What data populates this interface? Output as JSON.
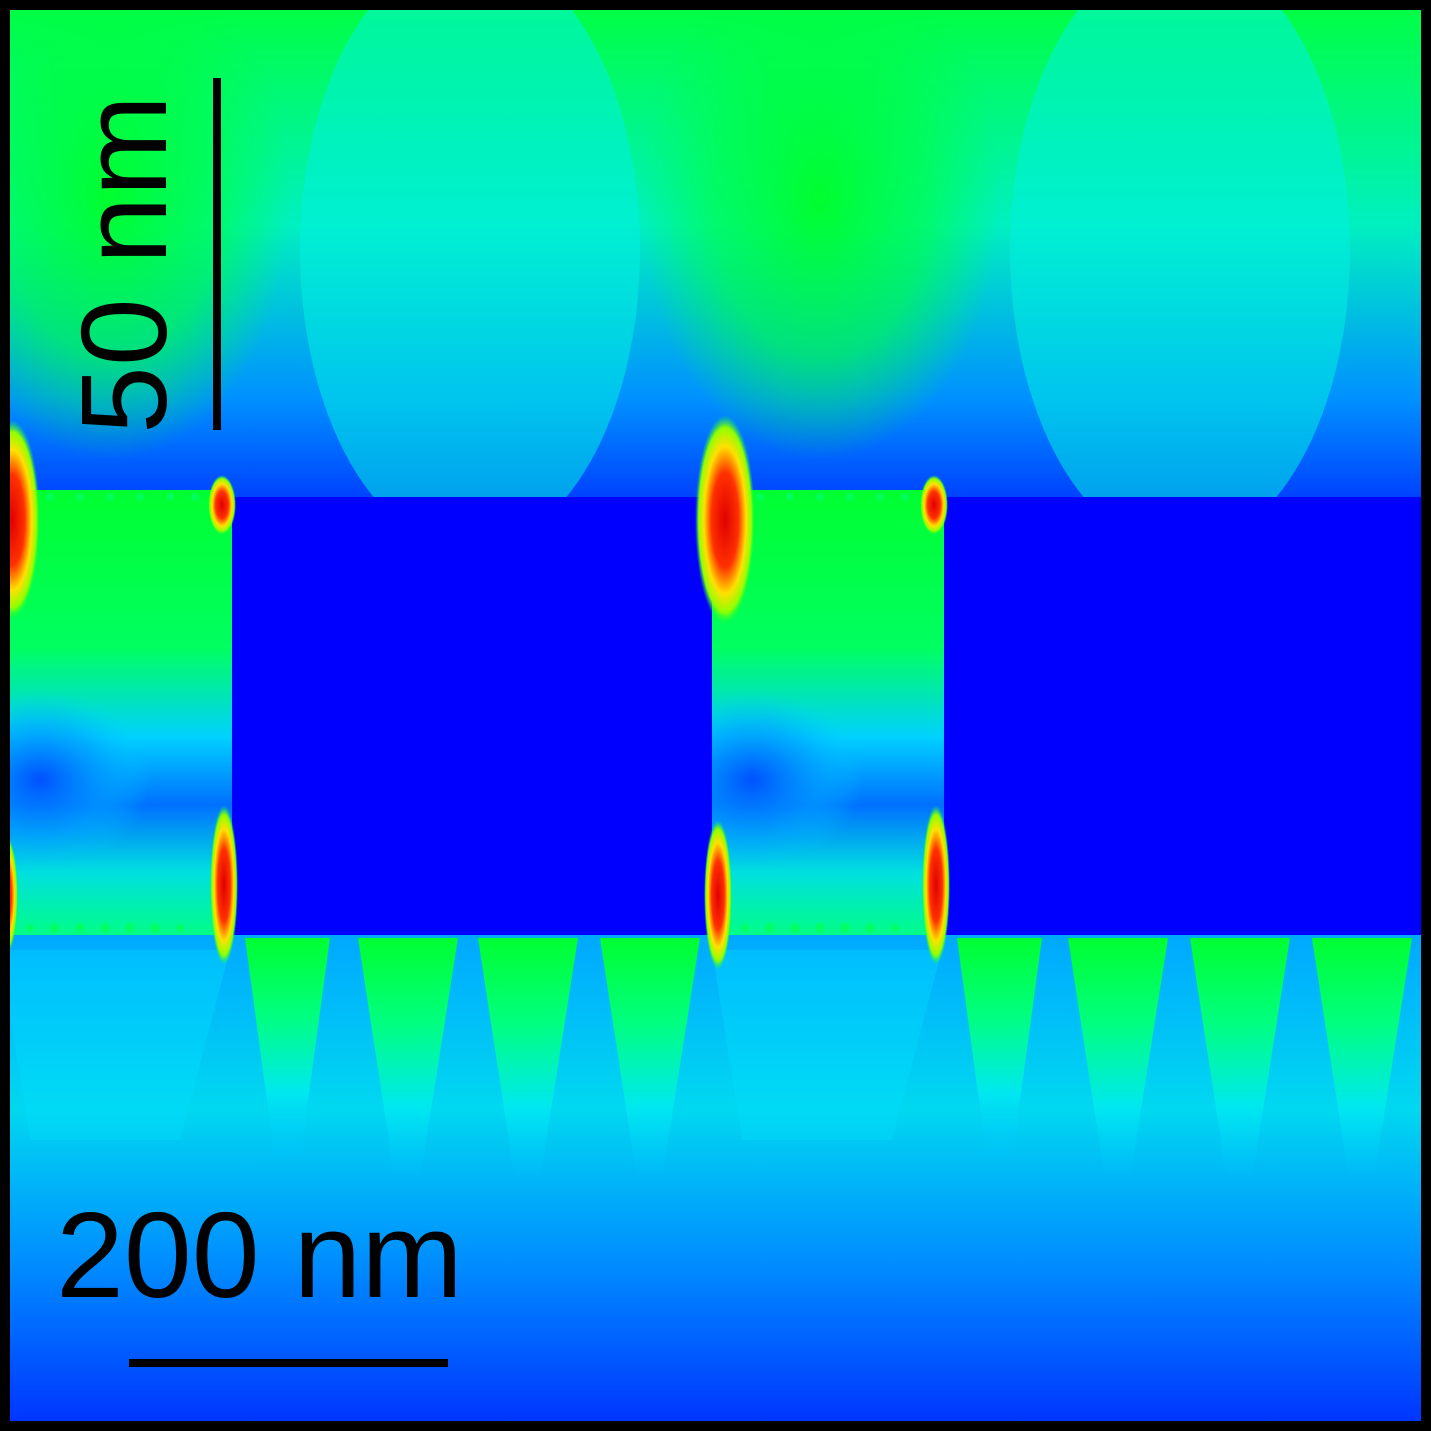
{
  "figure": {
    "colors": {
      "background_top": "#00f0a0",
      "field_green": "#00ff2a",
      "field_cyan": "#00f5e6",
      "field_blue": "#0a50ff",
      "metal_block": "#0000ff",
      "hotspot_red": "#ff1000",
      "hotspot_yellow": "#ffe600",
      "frame": "#000000",
      "scale_bar": "#000000"
    },
    "scale_bar_vertical": {
      "label": "50 nm"
    },
    "scale_bar_horizontal": {
      "label": "200 nm"
    }
  }
}
